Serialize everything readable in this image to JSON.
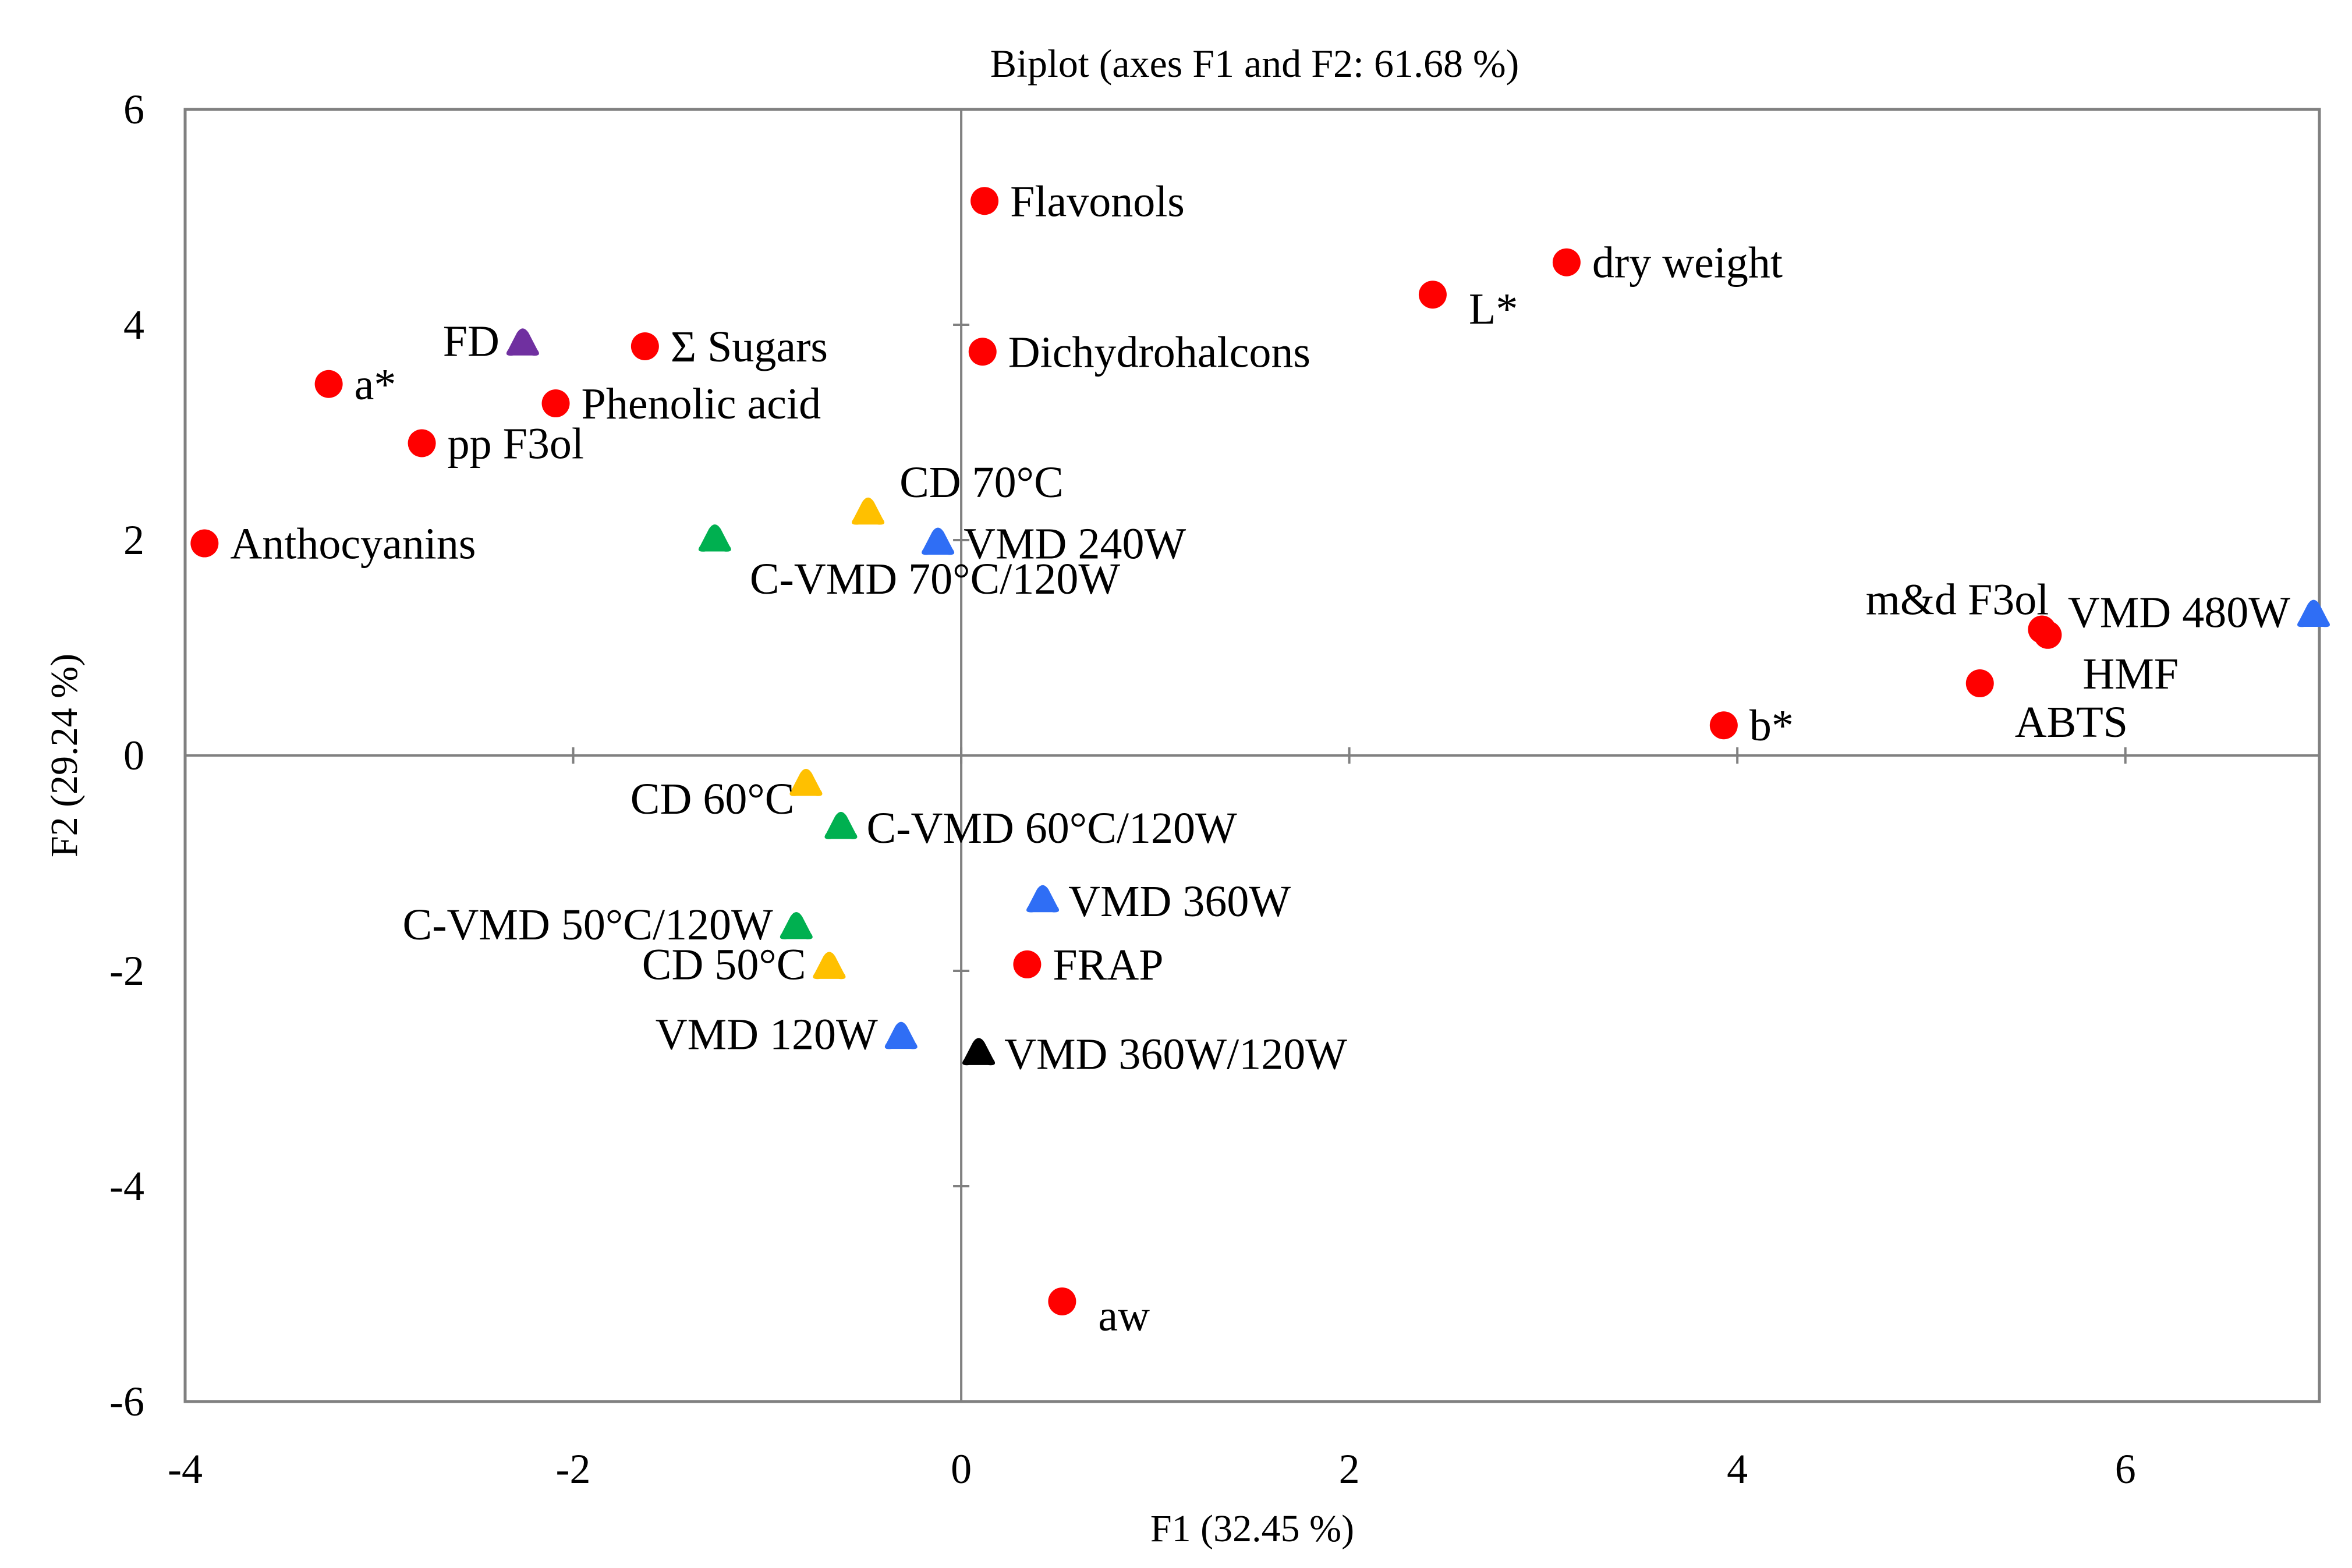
{
  "chart_data": {
    "type": "scatter",
    "title": "Biplot (axes F1 and F2: 61.68 %)",
    "xlabel": "F1 (32.45 %)",
    "ylabel": "F2 (29.24 %)",
    "xlim": [
      -4,
      7
    ],
    "ylim": [
      -6,
      6
    ],
    "xticks": [
      "-4",
      "-2",
      "0",
      "2",
      "4",
      "6"
    ],
    "yticks": [
      "-6",
      "-4",
      "-2",
      "0",
      "2",
      "4",
      "6"
    ],
    "grid": false,
    "colors": {
      "variables": "#ff0000",
      "fd": "#7030a0",
      "cd": "#ffc000",
      "cvmd": "#00b050",
      "vmd": "#2f6ef5",
      "combined": "#000000"
    },
    "variables": [
      {
        "label": "Flavonols",
        "x": 0.12,
        "y": 5.15,
        "label_pos": "right"
      },
      {
        "label": "dry weight",
        "x": 3.12,
        "y": 4.58,
        "label_pos": "right"
      },
      {
        "label": "L*",
        "x": 2.43,
        "y": 4.28,
        "label_pos": "right-low"
      },
      {
        "label": "Σ Sugars",
        "x": -1.63,
        "y": 3.8,
        "label_pos": "right"
      },
      {
        "label": "Dichydrohalcons",
        "x": 0.11,
        "y": 3.75,
        "label_pos": "right"
      },
      {
        "label": "a*",
        "x": -3.26,
        "y": 3.45,
        "label_pos": "right"
      },
      {
        "label": "Phenolic acid",
        "x": -2.09,
        "y": 3.27,
        "label_pos": "right"
      },
      {
        "label": "pp F3ol",
        "x": -2.78,
        "y": 2.9,
        "label_pos": "right"
      },
      {
        "label": "Anthocyanins",
        "x": -3.9,
        "y": 1.97,
        "label_pos": "right"
      },
      {
        "label": "m&d F3ol",
        "x": 5.57,
        "y": 1.17,
        "label_pos": "above-left"
      },
      {
        "label": "HMF",
        "x": 5.6,
        "y": 1.12,
        "label_pos": "below-right"
      },
      {
        "label": "ABTS",
        "x": 5.25,
        "y": 0.67,
        "label_pos": "below-right"
      },
      {
        "label": "b*",
        "x": 3.93,
        "y": 0.28,
        "label_pos": "right"
      },
      {
        "label": "FRAP",
        "x": 0.34,
        "y": -1.94,
        "label_pos": "right"
      },
      {
        "label": "aw",
        "x": 0.52,
        "y": -5.07,
        "label_pos": "right-low"
      }
    ],
    "observations": [
      {
        "label": "FD",
        "x": -2.26,
        "y": 3.82,
        "group": "fd",
        "label_pos": "left"
      },
      {
        "label": "CD 70°C",
        "x": -0.48,
        "y": 2.25,
        "group": "cd",
        "label_pos": "above-right"
      },
      {
        "label": "VMD 240W",
        "x": -0.12,
        "y": 1.97,
        "group": "vmd",
        "label_pos": "right"
      },
      {
        "label": "C-VMD 70°C/120W",
        "x": -1.27,
        "y": 2.0,
        "group": "cvmd",
        "label_pos": "below-right"
      },
      {
        "label": "VMD 480W",
        "x": 6.97,
        "y": 1.3,
        "group": "vmd",
        "label_pos": "left"
      },
      {
        "label": "CD 60°C",
        "x": -0.8,
        "y": -0.27,
        "group": "cd",
        "label_pos": "left-low"
      },
      {
        "label": "C-VMD 60°C/120W",
        "x": -0.62,
        "y": -0.67,
        "group": "cvmd",
        "label_pos": "right"
      },
      {
        "label": "VMD 360W",
        "x": 0.42,
        "y": -1.35,
        "group": "vmd",
        "label_pos": "right"
      },
      {
        "label": "C-VMD 50°C/120W",
        "x": -0.85,
        "y": -1.6,
        "group": "cvmd",
        "label_pos": "left"
      },
      {
        "label": "CD 50°C",
        "x": -0.68,
        "y": -1.97,
        "group": "cd",
        "label_pos": "left"
      },
      {
        "label": "VMD 120W",
        "x": -0.31,
        "y": -2.62,
        "group": "vmd",
        "label_pos": "left"
      },
      {
        "label": "VMD 360W/120W",
        "x": 0.09,
        "y": -2.77,
        "group": "combined",
        "label_pos": "right"
      }
    ]
  }
}
